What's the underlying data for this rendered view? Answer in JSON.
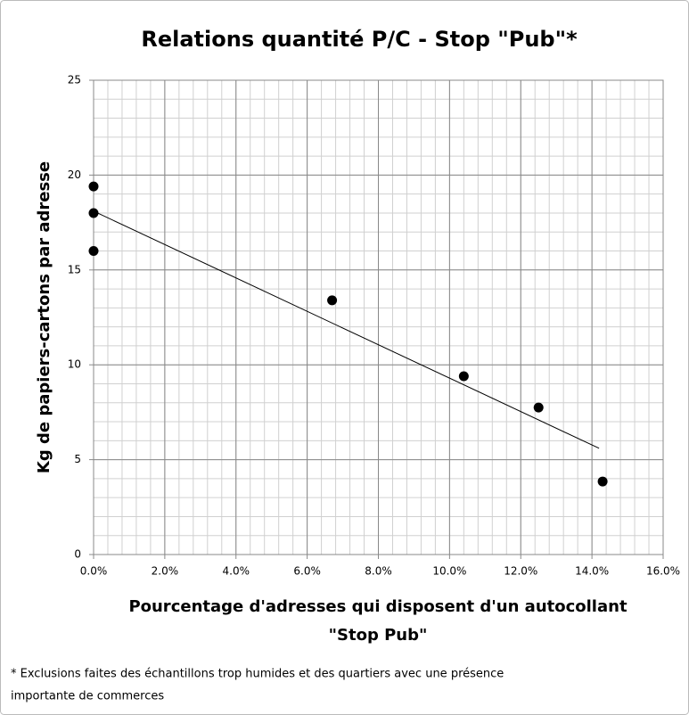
{
  "chart_data": {
    "type": "scatter",
    "title": "Relations quantité P/C - Stop \"Pub\"*",
    "x_label": [
      "Pourcentage d'adresses qui disposent d'un autocollant",
      "\"Stop Pub\""
    ],
    "y_label": "Kg de papiers-cartons par adresse",
    "footnote": [
      "* Exclusions faites des échantillons trop humides et des quartiers avec une présence",
      "importante de commerces"
    ],
    "x": [
      0,
      0,
      0,
      6.7,
      10.4,
      12.5,
      14.3
    ],
    "values": [
      19.4,
      18.0,
      16.0,
      13.4,
      9.4,
      7.75,
      3.85
    ],
    "color": "#000000",
    "trendline": {
      "x": [
        0,
        14.2
      ],
      "values": [
        18.1,
        5.6
      ],
      "color": "#000000"
    },
    "xlim": [
      0,
      16
    ],
    "ylim": [
      0,
      25
    ],
    "xticks": [
      {
        "value": 0,
        "label": "0.0%"
      },
      {
        "value": 2,
        "label": "2.0%"
      },
      {
        "value": 4,
        "label": "4.0%"
      },
      {
        "value": 6,
        "label": "6.0%"
      },
      {
        "value": 8,
        "label": "8.0%"
      },
      {
        "value": 10,
        "label": "10.0%"
      },
      {
        "value": 12,
        "label": "12.0%"
      },
      {
        "value": 14,
        "label": "14.0%"
      },
      {
        "value": 16,
        "label": "16.0%"
      }
    ],
    "yticks": [
      0,
      5,
      10,
      15,
      20,
      25
    ],
    "grid": true,
    "minor_grid": {
      "x": 0.4,
      "y": 1
    }
  }
}
